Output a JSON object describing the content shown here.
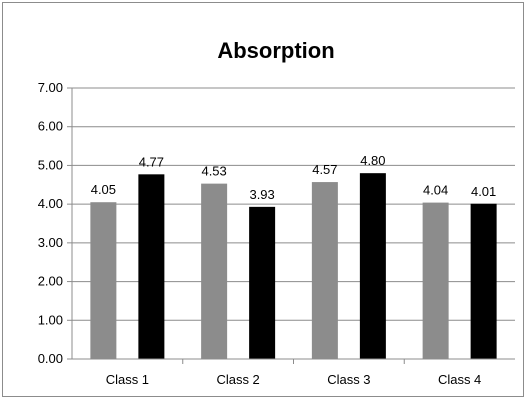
{
  "chart_data": {
    "type": "bar",
    "title": "Absorption",
    "xlabel": "",
    "ylabel": "",
    "categories": [
      "Class 1",
      "Class 2",
      "Class 3",
      "Class 4"
    ],
    "series": [
      {
        "values": [
          4.05,
          4.53,
          4.57,
          4.04
        ],
        "color": "#8c8c8c"
      },
      {
        "values": [
          4.77,
          3.93,
          4.8,
          4.01
        ],
        "color": "#000000"
      }
    ],
    "data_labels": [
      [
        "4.05",
        "4.53",
        "4.57",
        "4.04"
      ],
      [
        "4.77",
        "3.93",
        "4.80",
        "4.01"
      ]
    ],
    "ylim": [
      0,
      7
    ],
    "ytick_labels": [
      "0.00",
      "1.00",
      "2.00",
      "3.00",
      "4.00",
      "5.00",
      "6.00",
      "7.00"
    ],
    "grid": true,
    "legend": "none"
  }
}
